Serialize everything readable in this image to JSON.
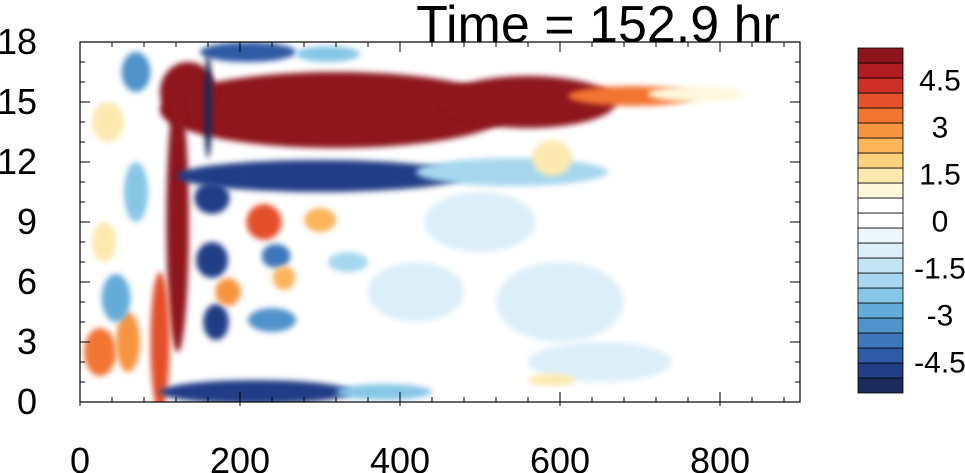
{
  "chart_data": {
    "type": "heatmap",
    "title": "Time = 152.9 hr",
    "xlabel": "",
    "ylabel": "",
    "xlim": [
      0,
      900
    ],
    "ylim": [
      0,
      18
    ],
    "x_ticks": [
      "0",
      "200",
      "400",
      "600",
      "800"
    ],
    "x_tick_values": [
      0,
      200,
      400,
      600,
      800
    ],
    "y_ticks": [
      "0",
      "3",
      "6",
      "9",
      "12",
      "15",
      "18"
    ],
    "y_tick_values": [
      0,
      3,
      6,
      9,
      12,
      15,
      18
    ],
    "colorbar": {
      "levels": [
        -5.5,
        -5,
        -4.5,
        -4,
        -3.5,
        -3,
        -2.5,
        -2,
        -1.5,
        -1,
        -0.5,
        0,
        0.5,
        1,
        1.5,
        2,
        2.5,
        3,
        3.5,
        4,
        4.5,
        5,
        5.5
      ],
      "colors": [
        "#1c2b5c",
        "#223e87",
        "#2e5aa6",
        "#3e77bb",
        "#4f93ca",
        "#63acda",
        "#86c6e6",
        "#a6d7ef",
        "#c3e4f3",
        "#dceff9",
        "#eef7fc",
        "#ffffff",
        "#ffffff",
        "#fff8dc",
        "#fde9b0",
        "#fcd17e",
        "#fbb45a",
        "#f79440",
        "#f27530",
        "#e4502a",
        "#cd3026",
        "#b01c21",
        "#8e141c"
      ],
      "labels": [
        "4.5",
        "3",
        "1.5",
        "0",
        "-1.5",
        "-3",
        "-4.5"
      ],
      "label_values": [
        4.5,
        3,
        1.5,
        0,
        -1.5,
        -3,
        -4.5
      ]
    },
    "features": [
      {
        "kind": "ellipse",
        "x": 320,
        "y": 14.6,
        "rx": 220,
        "ry": 1.9,
        "value": 6.0
      },
      {
        "kind": "ellipse",
        "x": 560,
        "y": 15.0,
        "rx": 110,
        "ry": 1.3,
        "value": 5.5
      },
      {
        "kind": "ellipse",
        "x": 690,
        "y": 15.3,
        "rx": 80,
        "ry": 0.5,
        "value": 3.5
      },
      {
        "kind": "ellipse",
        "x": 770,
        "y": 15.4,
        "rx": 60,
        "ry": 0.4,
        "value": 1.0
      },
      {
        "kind": "ellipse",
        "x": 135,
        "y": 15.5,
        "rx": 35,
        "ry": 1.5,
        "value": 6.0
      },
      {
        "kind": "ellipse",
        "x": 122,
        "y": 9.0,
        "rx": 14,
        "ry": 6.5,
        "value": 5.5
      },
      {
        "kind": "ellipse",
        "x": 100,
        "y": 3.0,
        "rx": 12,
        "ry": 3.5,
        "value": 4.0
      },
      {
        "kind": "ellipse",
        "x": 210,
        "y": 17.5,
        "rx": 60,
        "ry": 0.5,
        "value": -4.5
      },
      {
        "kind": "ellipse",
        "x": 310,
        "y": 17.4,
        "rx": 40,
        "ry": 0.4,
        "value": -2.5
      },
      {
        "kind": "ellipse",
        "x": 300,
        "y": 11.3,
        "rx": 180,
        "ry": 0.8,
        "value": -5.0
      },
      {
        "kind": "ellipse",
        "x": 540,
        "y": 11.5,
        "rx": 120,
        "ry": 0.7,
        "value": -2.0
      },
      {
        "kind": "ellipse",
        "x": 160,
        "y": 14.8,
        "rx": 5,
        "ry": 2.6,
        "value": -5.5
      },
      {
        "kind": "ellipse",
        "x": 165,
        "y": 10.2,
        "rx": 22,
        "ry": 0.8,
        "value": -5.0
      },
      {
        "kind": "ellipse",
        "x": 165,
        "y": 7.1,
        "rx": 20,
        "ry": 0.9,
        "value": -5.0
      },
      {
        "kind": "ellipse",
        "x": 245,
        "y": 7.3,
        "rx": 18,
        "ry": 0.6,
        "value": -4.0
      },
      {
        "kind": "ellipse",
        "x": 170,
        "y": 4.0,
        "rx": 16,
        "ry": 0.9,
        "value": -5.0
      },
      {
        "kind": "ellipse",
        "x": 240,
        "y": 4.1,
        "rx": 30,
        "ry": 0.6,
        "value": -3.5
      },
      {
        "kind": "ellipse",
        "x": 220,
        "y": 0.5,
        "rx": 120,
        "ry": 0.6,
        "value": -5.0
      },
      {
        "kind": "ellipse",
        "x": 380,
        "y": 0.5,
        "rx": 60,
        "ry": 0.4,
        "value": -2.5
      },
      {
        "kind": "ellipse",
        "x": 230,
        "y": 9.0,
        "rx": 22,
        "ry": 0.9,
        "value": 4.0
      },
      {
        "kind": "ellipse",
        "x": 300,
        "y": 9.1,
        "rx": 20,
        "ry": 0.6,
        "value": 2.5
      },
      {
        "kind": "ellipse",
        "x": 185,
        "y": 5.5,
        "rx": 16,
        "ry": 0.7,
        "value": 3.0
      },
      {
        "kind": "ellipse",
        "x": 255,
        "y": 6.2,
        "rx": 14,
        "ry": 0.6,
        "value": 2.5
      },
      {
        "kind": "ellipse",
        "x": 335,
        "y": 7.0,
        "rx": 25,
        "ry": 0.5,
        "value": -2.0
      },
      {
        "kind": "ellipse",
        "x": 25,
        "y": 2.5,
        "rx": 20,
        "ry": 1.2,
        "value": 3.5
      },
      {
        "kind": "ellipse",
        "x": 60,
        "y": 3.0,
        "rx": 15,
        "ry": 1.5,
        "value": 3.0
      },
      {
        "kind": "ellipse",
        "x": 45,
        "y": 5.2,
        "rx": 18,
        "ry": 1.2,
        "value": -3.0
      },
      {
        "kind": "ellipse",
        "x": 70,
        "y": 10.5,
        "rx": 15,
        "ry": 1.5,
        "value": -2.5
      },
      {
        "kind": "ellipse",
        "x": 35,
        "y": 14.0,
        "rx": 20,
        "ry": 1.0,
        "value": 1.5
      },
      {
        "kind": "ellipse",
        "x": 70,
        "y": 16.5,
        "rx": 18,
        "ry": 1.0,
        "value": -3.5
      },
      {
        "kind": "ellipse",
        "x": 30,
        "y": 8.0,
        "rx": 15,
        "ry": 1.0,
        "value": 1.5
      },
      {
        "kind": "ellipse",
        "x": 500,
        "y": 9.0,
        "rx": 70,
        "ry": 1.5,
        "value": -0.8
      },
      {
        "kind": "ellipse",
        "x": 600,
        "y": 5.0,
        "rx": 80,
        "ry": 2.0,
        "value": -0.8
      },
      {
        "kind": "ellipse",
        "x": 420,
        "y": 5.5,
        "rx": 60,
        "ry": 1.5,
        "value": -0.8
      },
      {
        "kind": "ellipse",
        "x": 650,
        "y": 2.0,
        "rx": 90,
        "ry": 1.0,
        "value": -0.6
      },
      {
        "kind": "ellipse",
        "x": 590,
        "y": 12.2,
        "rx": 25,
        "ry": 0.9,
        "value": 1.5
      },
      {
        "kind": "ellipse",
        "x": 780,
        "y": 0.8,
        "rx": 40,
        "ry": 0.3,
        "value": 0.8
      },
      {
        "kind": "ellipse",
        "x": 590,
        "y": 1.1,
        "rx": 30,
        "ry": 0.3,
        "value": 1.5
      },
      {
        "kind": "ellipse",
        "x": 885,
        "y": 11.0,
        "rx": 15,
        "ry": 0.7,
        "value": 0.8
      }
    ]
  }
}
